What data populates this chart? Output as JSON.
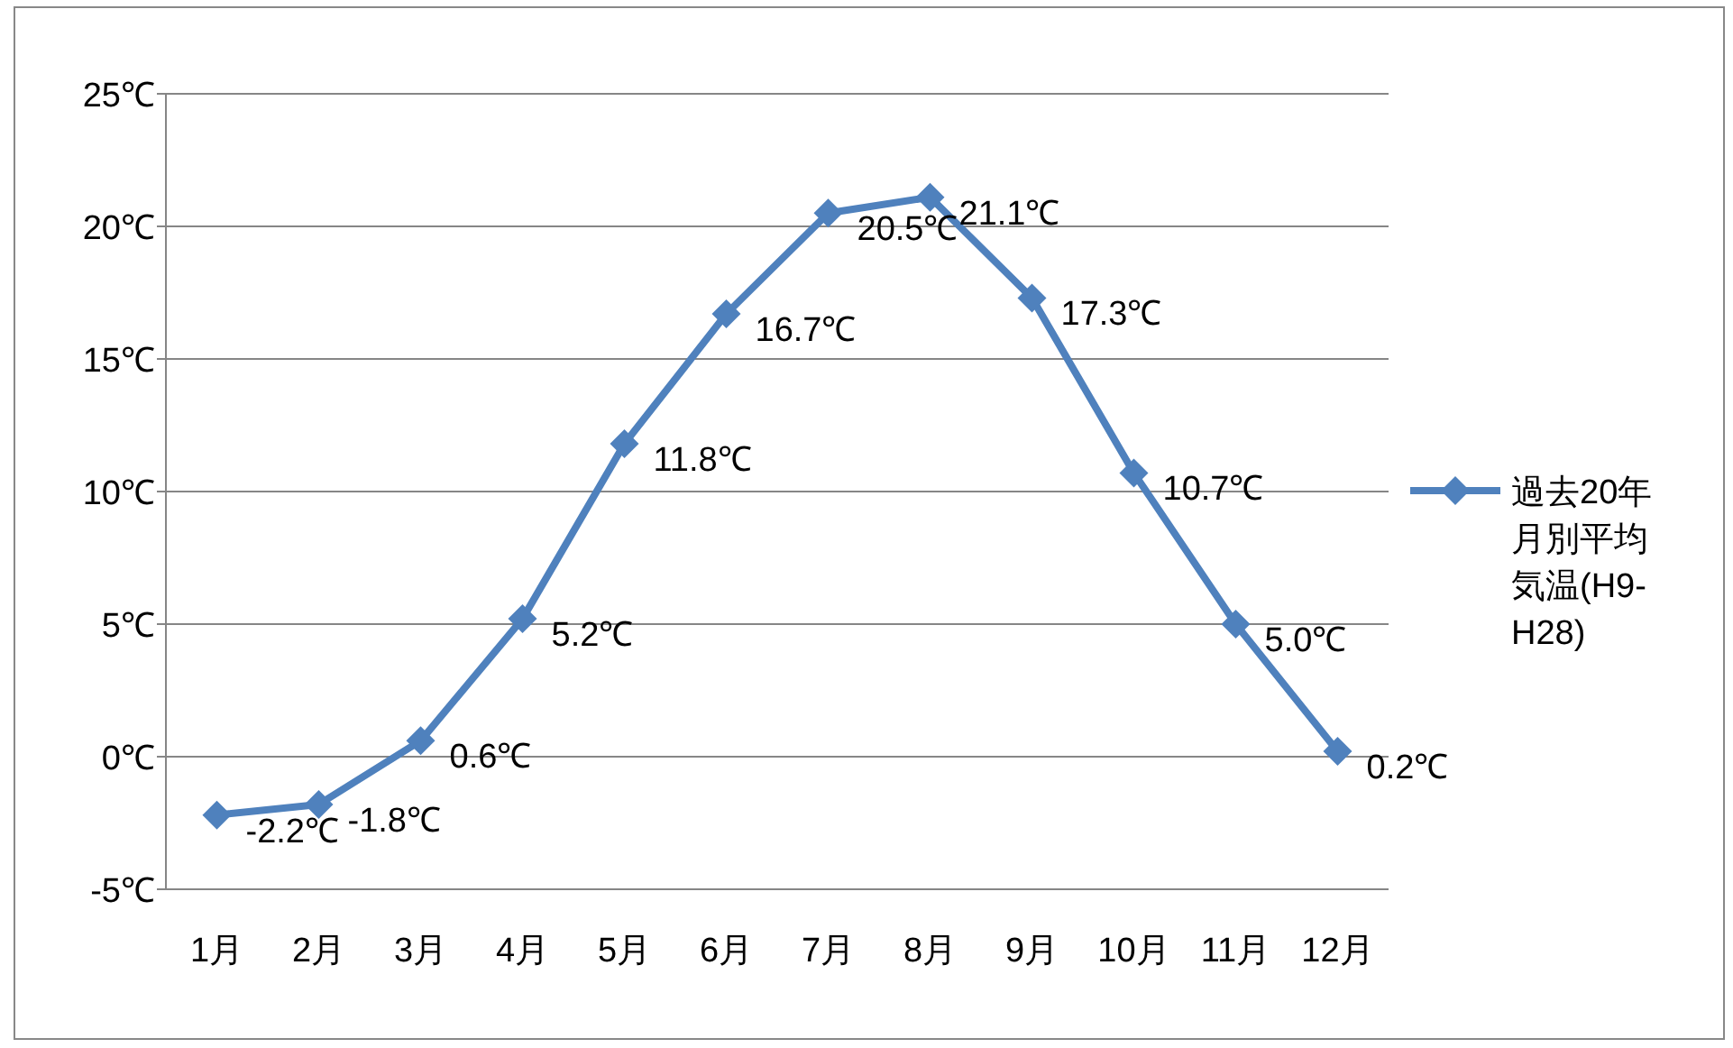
{
  "chart_data": {
    "type": "line",
    "categories": [
      "1月",
      "2月",
      "3月",
      "4月",
      "5月",
      "6月",
      "7月",
      "8月",
      "9月",
      "10月",
      "11月",
      "12月"
    ],
    "series": [
      {
        "name": "過去20年月別平均気温(H9-H28)",
        "color": "#4f81bd",
        "values": [
          -2.2,
          -1.8,
          0.6,
          5.2,
          11.8,
          16.7,
          20.5,
          21.1,
          17.3,
          10.7,
          5.0,
          0.2
        ],
        "value_labels": [
          "-2.2℃",
          "-1.8℃",
          "0.6℃",
          "5.2℃",
          "11.8℃",
          "16.7℃",
          "20.5℃",
          "21.1℃",
          "17.3℃",
          "10.7℃",
          "5.0℃",
          "0.2℃"
        ]
      }
    ],
    "ylim": [
      -5,
      25
    ],
    "yticks": [
      {
        "value": -5,
        "label": "-5℃"
      },
      {
        "value": 0,
        "label": "0℃"
      },
      {
        "value": 5,
        "label": "5℃"
      },
      {
        "value": 10,
        "label": "10℃"
      },
      {
        "value": 15,
        "label": "15℃"
      },
      {
        "value": 20,
        "label": "20℃"
      },
      {
        "value": 25,
        "label": "25℃"
      }
    ],
    "grid": "y",
    "legend": "right",
    "marker": "diamond",
    "line_style": "solid"
  }
}
